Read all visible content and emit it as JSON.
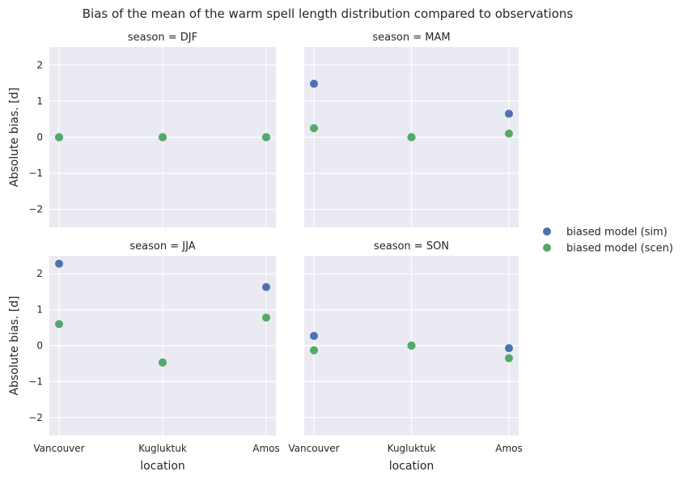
{
  "figure_title": "Bias of the mean of the warm spell length distribution compared to observations",
  "legend": {
    "placement": "right",
    "items": [
      {
        "label": "biased model (sim)",
        "color": "#4c72b0"
      },
      {
        "label": "biased model (scen)",
        "color": "#55a868"
      }
    ]
  },
  "chart_data": [
    {
      "type": "scatter",
      "title": "season = DJF",
      "xlabel": "",
      "ylabel": "Absolute bias. [d]",
      "categories": [
        "Vancouver",
        "Kugluktuk",
        "Amos"
      ],
      "ylim": [
        -2.5,
        2.5
      ],
      "yticks": [
        -2,
        -1,
        0,
        1,
        2
      ],
      "grid": true,
      "series": [
        {
          "name": "biased model (sim)",
          "values": [
            0,
            0,
            0
          ]
        },
        {
          "name": "biased model (scen)",
          "values": [
            0,
            0,
            0
          ]
        }
      ]
    },
    {
      "type": "scatter",
      "title": "season = MAM",
      "xlabel": "",
      "ylabel": "",
      "categories": [
        "Vancouver",
        "Kugluktuk",
        "Amos"
      ],
      "ylim": [
        -2.5,
        2.5
      ],
      "yticks": [
        -2,
        -1,
        0,
        1,
        2
      ],
      "grid": true,
      "series": [
        {
          "name": "biased model (sim)",
          "values": [
            1.48,
            0,
            0.65
          ]
        },
        {
          "name": "biased model (scen)",
          "values": [
            0.25,
            0,
            0.1
          ]
        }
      ]
    },
    {
      "type": "scatter",
      "title": "season = JJA",
      "xlabel": "location",
      "ylabel": "Absolute bias. [d]",
      "categories": [
        "Vancouver",
        "Kugluktuk",
        "Amos"
      ],
      "ylim": [
        -2.5,
        2.5
      ],
      "yticks": [
        -2,
        -1,
        0,
        1,
        2
      ],
      "grid": true,
      "series": [
        {
          "name": "biased model (sim)",
          "values": [
            2.28,
            -0.47,
            1.63
          ]
        },
        {
          "name": "biased model (scen)",
          "values": [
            0.6,
            -0.47,
            0.78
          ]
        }
      ]
    },
    {
      "type": "scatter",
      "title": "season = SON",
      "xlabel": "location",
      "ylabel": "",
      "categories": [
        "Vancouver",
        "Kugluktuk",
        "Amos"
      ],
      "ylim": [
        -2.5,
        2.5
      ],
      "yticks": [
        -2,
        -1,
        0,
        1,
        2
      ],
      "grid": true,
      "series": [
        {
          "name": "biased model (sim)",
          "values": [
            0.27,
            0,
            -0.07
          ]
        },
        {
          "name": "biased model (scen)",
          "values": [
            -0.13,
            0,
            -0.35
          ]
        }
      ]
    }
  ]
}
